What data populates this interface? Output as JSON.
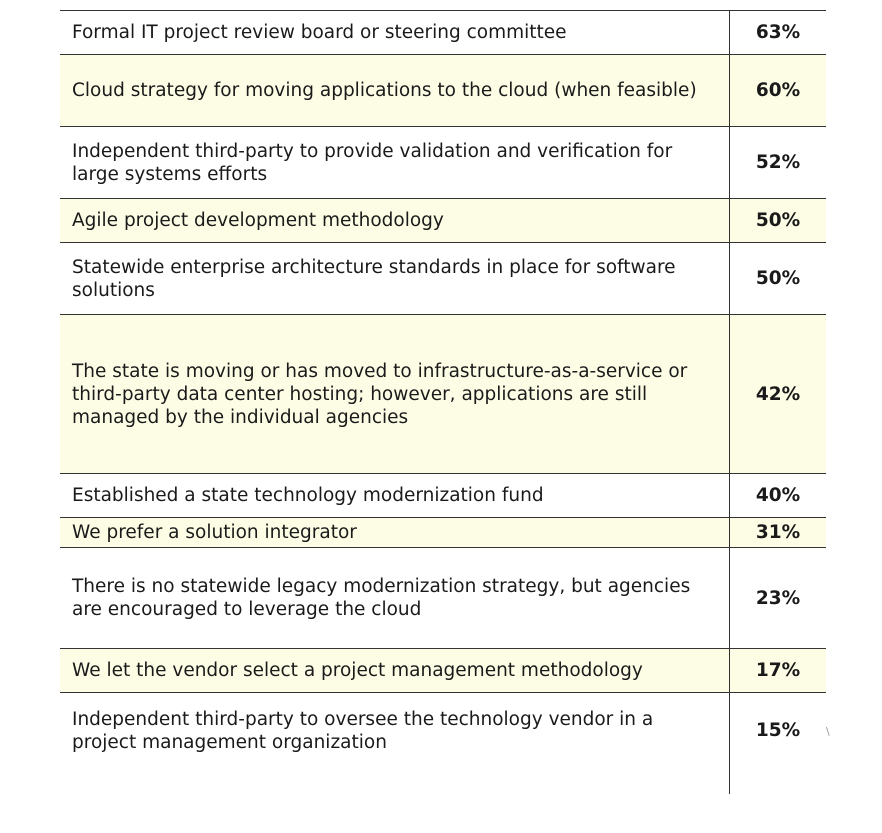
{
  "rows": [
    {
      "label": "Formal IT project review board or steering committee",
      "value": "63%"
    },
    {
      "label": "Cloud strategy for moving applications to the cloud (when feasible)",
      "value": "60%"
    },
    {
      "label": "Independent third-party to provide validation and verification for large systems efforts",
      "value": "52%"
    },
    {
      "label": "Agile project development methodology",
      "value": "50%"
    },
    {
      "label": "Statewide enterprise architecture standards in place for software solutions",
      "value": "50%"
    },
    {
      "label": "The state is moving or has moved to infrastructure-as-a-service or third-party data center hosting; however, applications are still managed by the individual agencies",
      "value": "42%"
    },
    {
      "label": "Established a state technology modernization fund",
      "value": "40%"
    },
    {
      "label": "We prefer a solution integrator",
      "value": "31%"
    },
    {
      "label": "There is no statewide legacy modernization strategy, but agencies are encouraged to leverage the cloud",
      "value": "23%"
    },
    {
      "label": "We let the vendor select a project management methodology",
      "value": "17%"
    },
    {
      "label": "Independent third-party to oversee the technology vendor in a project management organization",
      "value": "15%"
    }
  ]
}
